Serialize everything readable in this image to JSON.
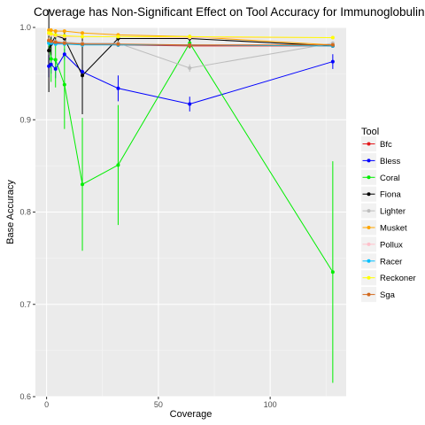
{
  "chart_data": {
    "type": "line",
    "title": "Coverage has Non-Significant Effect on Tool Accuracy for Immunoglobulin He",
    "xlabel": "Coverage",
    "ylabel": "Base Accuracy",
    "xlim": [
      -5,
      134
    ],
    "ylim": [
      0.6,
      1.0
    ],
    "x_ticks": [
      0,
      50,
      100
    ],
    "x_tick_labels": [
      "0",
      "50",
      "100"
    ],
    "y_ticks": [
      0.6,
      0.7,
      0.8,
      0.9,
      1.0
    ],
    "y_tick_labels": [
      "0.6",
      "0.7",
      "0.8",
      "0.9",
      "1.0"
    ],
    "grid": true,
    "background": "#ebebeb",
    "legend": {
      "title": "Tool",
      "position": "right"
    },
    "x": [
      1,
      2,
      4,
      8,
      16,
      32,
      64,
      128
    ],
    "series": [
      {
        "name": "Bfc",
        "color": "#e41a1c",
        "values": [
          0.985,
          0.984,
          0.983,
          0.983,
          0.982,
          0.981,
          0.98,
          0.98
        ],
        "errors": [
          0.004,
          0.003,
          0.002,
          0.002,
          0.002,
          0.002,
          0.002,
          0.002
        ]
      },
      {
        "name": "Bless",
        "color": "#0000ff",
        "values": [
          0.958,
          0.96,
          0.955,
          0.971,
          0.952,
          0.934,
          0.917,
          0.963
        ],
        "errors": [
          0.012,
          0.01,
          0.01,
          0.006,
          0.008,
          0.014,
          0.008,
          0.008
        ]
      },
      {
        "name": "Coral",
        "color": "#00ee00",
        "values": [
          0.985,
          0.966,
          0.965,
          0.938,
          0.83,
          0.851,
          0.983,
          0.735
        ],
        "errors": [
          0.012,
          0.025,
          0.03,
          0.048,
          0.072,
          0.065,
          0.006,
          0.12
        ]
      },
      {
        "name": "Fiona",
        "color": "#000000",
        "values": [
          0.975,
          0.982,
          0.991,
          0.988,
          0.948,
          0.988,
          0.988,
          0.98
        ],
        "errors": [
          0.045,
          0.012,
          0.004,
          0.006,
          0.042,
          0.004,
          0.004,
          0.002
        ]
      },
      {
        "name": "Lighter",
        "color": "#bdbdbd",
        "values": [
          0.985,
          0.984,
          0.985,
          0.984,
          0.983,
          0.983,
          0.956,
          0.983
        ],
        "errors": [
          0.004,
          0.003,
          0.002,
          0.002,
          0.002,
          0.002,
          0.004,
          0.002
        ]
      },
      {
        "name": "Musket",
        "color": "#ffa500",
        "values": [
          0.997,
          0.997,
          0.996,
          0.996,
          0.994,
          0.992,
          0.99,
          0.981
        ],
        "errors": [
          0.002,
          0.002,
          0.001,
          0.001,
          0.001,
          0.001,
          0.001,
          0.001
        ]
      },
      {
        "name": "Pollux",
        "color": "#ffc0cb",
        "values": [
          0.993,
          0.992,
          0.991,
          0.99,
          0.99,
          0.99,
          0.989,
          0.989
        ],
        "errors": [
          0.002,
          0.002,
          0.001,
          0.001,
          0.001,
          0.001,
          0.001,
          0.001
        ]
      },
      {
        "name": "Racer",
        "color": "#00bfff",
        "values": [
          0.983,
          0.983,
          0.982,
          0.982,
          0.981,
          0.981,
          0.981,
          0.98
        ],
        "errors": [
          0.003,
          0.002,
          0.002,
          0.002,
          0.002,
          0.002,
          0.002,
          0.002
        ]
      },
      {
        "name": "Reckoner",
        "color": "#ffff00",
        "values": [
          0.994,
          0.993,
          0.992,
          0.991,
          0.99,
          0.99,
          0.99,
          0.989
        ],
        "errors": [
          0.002,
          0.002,
          0.001,
          0.001,
          0.001,
          0.001,
          0.001,
          0.001
        ]
      },
      {
        "name": "Sga",
        "color": "#d2691e",
        "values": [
          0.986,
          0.985,
          0.984,
          0.983,
          0.982,
          0.982,
          0.981,
          0.981
        ],
        "errors": [
          0.003,
          0.002,
          0.002,
          0.002,
          0.002,
          0.002,
          0.002,
          0.002
        ]
      }
    ]
  }
}
